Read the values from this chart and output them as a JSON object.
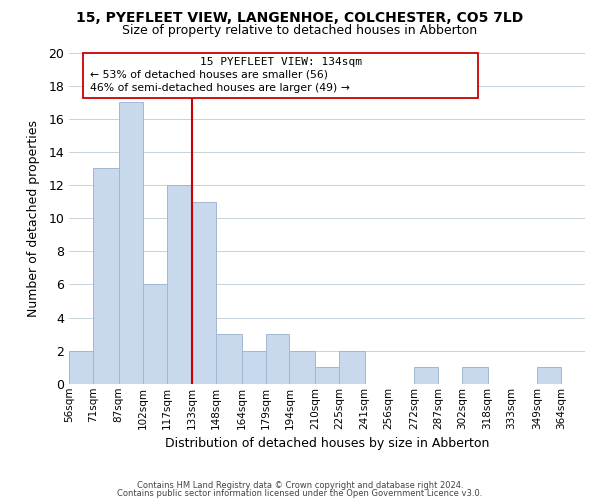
{
  "title1": "15, PYEFLEET VIEW, LANGENHOE, COLCHESTER, CO5 7LD",
  "title2": "Size of property relative to detached houses in Abberton",
  "xlabel": "Distribution of detached houses by size in Abberton",
  "ylabel": "Number of detached properties",
  "bar_labels": [
    "56sqm",
    "71sqm",
    "87sqm",
    "102sqm",
    "117sqm",
    "133sqm",
    "148sqm",
    "164sqm",
    "179sqm",
    "194sqm",
    "210sqm",
    "225sqm",
    "241sqm",
    "256sqm",
    "272sqm",
    "287sqm",
    "302sqm",
    "318sqm",
    "333sqm",
    "349sqm",
    "364sqm"
  ],
  "bar_heights": [
    2,
    13,
    17,
    6,
    12,
    11,
    3,
    2,
    3,
    2,
    1,
    2,
    0,
    0,
    1,
    0,
    1,
    0,
    0,
    1
  ],
  "bin_edges": [
    56,
    71,
    87,
    102,
    117,
    133,
    148,
    164,
    179,
    194,
    210,
    225,
    241,
    256,
    272,
    287,
    302,
    318,
    333,
    349,
    364
  ],
  "bar_color": "#c8d8ed",
  "bar_edgecolor": "#a0b8d0",
  "grid_color": "#c8d4dc",
  "reference_line_x": 133,
  "reference_line_color": "#cc0000",
  "annotation_title": "15 PYEFLEET VIEW: 134sqm",
  "annotation_line1": "← 53% of detached houses are smaller (56)",
  "annotation_line2": "46% of semi-detached houses are larger (49) →",
  "annotation_box_edgecolor": "#cc0000",
  "ylim": [
    0,
    20
  ],
  "yticks": [
    0,
    2,
    4,
    6,
    8,
    10,
    12,
    14,
    16,
    18,
    20
  ],
  "footer1": "Contains HM Land Registry data © Crown copyright and database right 2024.",
  "footer2": "Contains public sector information licensed under the Open Government Licence v3.0."
}
